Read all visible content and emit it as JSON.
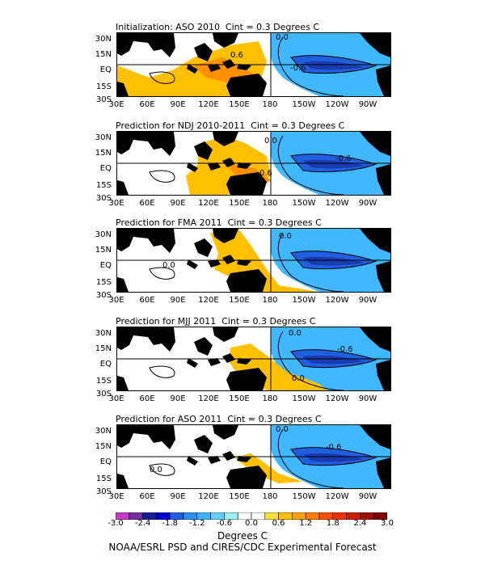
{
  "panels": [
    {
      "title": "Initialization: ASO 2010  Cint = 0.3 Degrees C",
      "contour_labels": [
        "0.0",
        "0.6",
        "-0.6"
      ]
    },
    {
      "title": "Prediction for NDJ 2010-2011  Cint = 0.3 Degrees C",
      "contour_labels": [
        "0.0",
        "-0.6",
        "0.6"
      ]
    },
    {
      "title": "Prediction for FMA 2011  Cint = 0.3 Degrees C",
      "contour_labels": [
        "0.0",
        "0.0"
      ]
    },
    {
      "title": "Prediction for MJJ 2011  Cint = 0.3 Degrees C",
      "contour_labels": [
        "0.0",
        "-0.6",
        "0.0"
      ]
    },
    {
      "title": "Prediction for ASO 2011  Cint = 0.3 Degrees C",
      "contour_labels": [
        "0.0",
        "-0.6",
        "0.0"
      ]
    }
  ],
  "lat_labels": [
    "30N",
    "15N",
    "EQ",
    "15S",
    "30S"
  ],
  "lon_labels": [
    "30E",
    "60E",
    "90E",
    "120E",
    "150E",
    "180",
    "150W",
    "120W",
    "90W"
  ],
  "colorbar": {
    "labels": [
      "-3.0",
      "-2.4",
      "-1.8",
      "-1.2",
      "-0.6",
      "0.0",
      "0.6",
      "1.2",
      "1.8",
      "2.4",
      "3.0"
    ],
    "colors": [
      "#c838c8",
      "#7030a0",
      "#1a1a96",
      "#0000d0",
      "#1f5fe0",
      "#2f8fef",
      "#3fb0ff",
      "#5fd0ff",
      "#a0f0ff",
      "#ffffff",
      "#ffffff",
      "#ffe040",
      "#ffc000",
      "#ffa000",
      "#ff8000",
      "#ff5000",
      "#f03000",
      "#c82000",
      "#a01000",
      "#800000"
    ],
    "units": "Degrees C"
  },
  "credit": "NOAA/ESRL PSD and CIRES/CDC Experimental Forecast",
  "colors": {
    "land": "#000000",
    "cold": "#3fb8ff",
    "cold_deep": "#1f5fe0",
    "warm": "#ffc000",
    "warm_deep": "#ff9000"
  }
}
